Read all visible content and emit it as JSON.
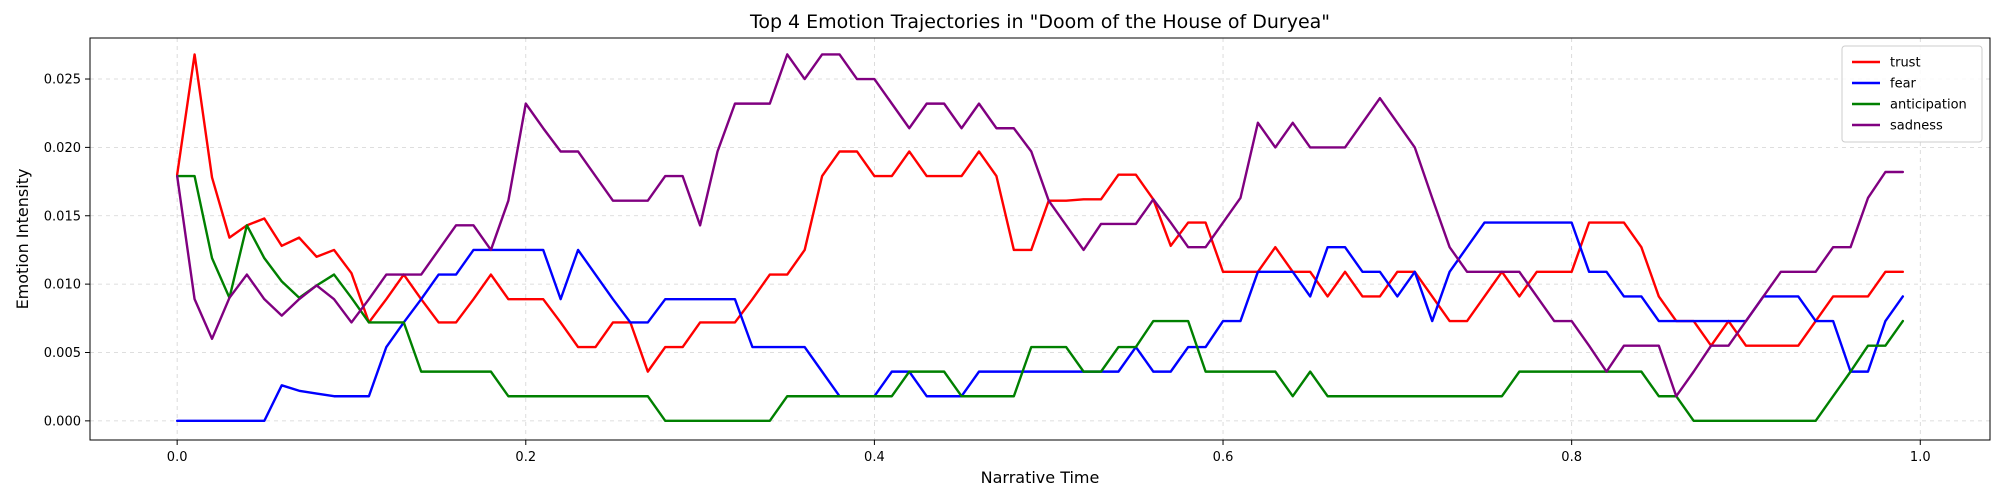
{
  "chart_data": {
    "type": "line",
    "title": "Top 4 Emotion Trajectories in \"Doom of the House of Duryea\"",
    "xlabel": "Narrative Time",
    "ylabel": "Emotion Intensity",
    "xlim": [
      -0.05,
      1.04
    ],
    "ylim": [
      -0.0014,
      0.028
    ],
    "xticks": [
      0.0,
      0.2,
      0.4,
      0.6,
      0.8,
      1.0
    ],
    "xtick_labels": [
      "0.0",
      "0.2",
      "0.4",
      "0.6",
      "0.8",
      "1.0"
    ],
    "yticks": [
      0.0,
      0.005,
      0.01,
      0.015,
      0.02,
      0.025
    ],
    "ytick_labels": [
      "0.000",
      "0.005",
      "0.010",
      "0.015",
      "0.020",
      "0.025"
    ],
    "grid": true,
    "legend_position": "top-right",
    "x": [
      0.0,
      0.01,
      0.02,
      0.03,
      0.04,
      0.05,
      0.06,
      0.07,
      0.08,
      0.09,
      0.1,
      0.11,
      0.12,
      0.13,
      0.14,
      0.15,
      0.16,
      0.17,
      0.18,
      0.19,
      0.2,
      0.21,
      0.22,
      0.23,
      0.24,
      0.25,
      0.26,
      0.27,
      0.28,
      0.29,
      0.3,
      0.31,
      0.32,
      0.33,
      0.34,
      0.35,
      0.36,
      0.37,
      0.38,
      0.39,
      0.4,
      0.41,
      0.42,
      0.43,
      0.44,
      0.45,
      0.46,
      0.47,
      0.48,
      0.49,
      0.5,
      0.51,
      0.52,
      0.53,
      0.54,
      0.55,
      0.56,
      0.57,
      0.58,
      0.59,
      0.6,
      0.61,
      0.62,
      0.63,
      0.64,
      0.65,
      0.66,
      0.67,
      0.68,
      0.69,
      0.7,
      0.71,
      0.72,
      0.73,
      0.74,
      0.75,
      0.76,
      0.77,
      0.78,
      0.79,
      0.8,
      0.81,
      0.82,
      0.83,
      0.84,
      0.85,
      0.86,
      0.87,
      0.88,
      0.89,
      0.9,
      0.91,
      0.92,
      0.93,
      0.94,
      0.95,
      0.96,
      0.97,
      0.98,
      0.99
    ],
    "series": [
      {
        "name": "trust",
        "color": "#ff0000",
        "values": [
          0.018,
          0.0268,
          0.0178,
          0.0134,
          0.0143,
          0.0148,
          0.0128,
          0.0134,
          0.012,
          0.0125,
          0.0108,
          0.0072,
          0.0089,
          0.0107,
          0.0089,
          0.0072,
          0.0072,
          0.0089,
          0.0107,
          0.0089,
          0.0089,
          0.0089,
          0.0072,
          0.0054,
          0.0054,
          0.0072,
          0.0072,
          0.0036,
          0.0054,
          0.0054,
          0.0072,
          0.0072,
          0.0072,
          0.0089,
          0.0107,
          0.0107,
          0.0125,
          0.0179,
          0.0197,
          0.0197,
          0.0179,
          0.0179,
          0.0197,
          0.0179,
          0.0179,
          0.0179,
          0.0197,
          0.0179,
          0.0125,
          0.0125,
          0.0161,
          0.0161,
          0.0162,
          0.0162,
          0.018,
          0.018,
          0.0162,
          0.0128,
          0.0145,
          0.0145,
          0.0109,
          0.0109,
          0.0109,
          0.0127,
          0.0109,
          0.0109,
          0.0091,
          0.0109,
          0.0091,
          0.0091,
          0.0109,
          0.0109,
          0.0091,
          0.0073,
          0.0073,
          0.0091,
          0.0109,
          0.0091,
          0.0109,
          0.0109,
          0.0109,
          0.0145,
          0.0145,
          0.0145,
          0.0127,
          0.0091,
          0.0073,
          0.0073,
          0.0055,
          0.0073,
          0.0055,
          0.0055,
          0.0055,
          0.0055,
          0.0073,
          0.0091,
          0.0091,
          0.0091,
          0.0109,
          0.0109
        ]
      },
      {
        "name": "fear",
        "color": "#0000ff",
        "values": [
          0.0,
          0.0,
          0.0,
          0.0,
          0.0,
          0.0,
          0.0026,
          0.0022,
          0.002,
          0.0018,
          0.0018,
          0.0018,
          0.0054,
          0.0072,
          0.0089,
          0.0107,
          0.0107,
          0.0125,
          0.0125,
          0.0125,
          0.0125,
          0.0125,
          0.0089,
          0.0125,
          0.0107,
          0.0089,
          0.0072,
          0.0072,
          0.0089,
          0.0089,
          0.0089,
          0.0089,
          0.0089,
          0.0054,
          0.0054,
          0.0054,
          0.0054,
          0.0036,
          0.0018,
          0.0018,
          0.0018,
          0.0036,
          0.0036,
          0.0018,
          0.0018,
          0.0018,
          0.0036,
          0.0036,
          0.0036,
          0.0036,
          0.0036,
          0.0036,
          0.0036,
          0.0036,
          0.0036,
          0.0054,
          0.0036,
          0.0036,
          0.0054,
          0.0054,
          0.0073,
          0.0073,
          0.0109,
          0.0109,
          0.0109,
          0.0091,
          0.0127,
          0.0127,
          0.0109,
          0.0109,
          0.0091,
          0.0109,
          0.0073,
          0.0109,
          0.0127,
          0.0145,
          0.0145,
          0.0145,
          0.0145,
          0.0145,
          0.0145,
          0.0109,
          0.0109,
          0.0091,
          0.0091,
          0.0073,
          0.0073,
          0.0073,
          0.0073,
          0.0073,
          0.0073,
          0.0091,
          0.0091,
          0.0091,
          0.0073,
          0.0073,
          0.0036,
          0.0036,
          0.0073,
          0.0091
        ]
      },
      {
        "name": "anticipation",
        "color": "#008000",
        "values": [
          0.0179,
          0.0179,
          0.0119,
          0.009,
          0.0143,
          0.0119,
          0.0102,
          0.009,
          0.0099,
          0.0107,
          0.009,
          0.0072,
          0.0072,
          0.0072,
          0.0036,
          0.0036,
          0.0036,
          0.0036,
          0.0036,
          0.0018,
          0.0018,
          0.0018,
          0.0018,
          0.0018,
          0.0018,
          0.0018,
          0.0018,
          0.0018,
          0.0,
          0.0,
          0.0,
          0.0,
          0.0,
          0.0,
          0.0,
          0.0018,
          0.0018,
          0.0018,
          0.0018,
          0.0018,
          0.0018,
          0.0018,
          0.0036,
          0.0036,
          0.0036,
          0.0018,
          0.0018,
          0.0018,
          0.0018,
          0.0054,
          0.0054,
          0.0054,
          0.0036,
          0.0036,
          0.0054,
          0.0054,
          0.0073,
          0.0073,
          0.0073,
          0.0036,
          0.0036,
          0.0036,
          0.0036,
          0.0036,
          0.0018,
          0.0036,
          0.0018,
          0.0018,
          0.0018,
          0.0018,
          0.0018,
          0.0018,
          0.0018,
          0.0018,
          0.0018,
          0.0018,
          0.0018,
          0.0036,
          0.0036,
          0.0036,
          0.0036,
          0.0036,
          0.0036,
          0.0036,
          0.0036,
          0.0018,
          0.0018,
          0.0,
          0.0,
          0.0,
          0.0,
          0.0,
          0.0,
          0.0,
          0.0,
          0.0018,
          0.0036,
          0.0055,
          0.0055,
          0.0073
        ]
      },
      {
        "name": "sadness",
        "color": "#800080",
        "values": [
          0.0179,
          0.0089,
          0.006,
          0.009,
          0.0107,
          0.0089,
          0.0077,
          0.0089,
          0.0099,
          0.0089,
          0.0072,
          0.0089,
          0.0107,
          0.0107,
          0.0107,
          0.0125,
          0.0143,
          0.0143,
          0.0125,
          0.0161,
          0.0232,
          0.0214,
          0.0197,
          0.0197,
          0.0179,
          0.0161,
          0.0161,
          0.0161,
          0.0179,
          0.0179,
          0.0143,
          0.0197,
          0.0232,
          0.0232,
          0.0232,
          0.0268,
          0.025,
          0.0268,
          0.0268,
          0.025,
          0.025,
          0.0232,
          0.0214,
          0.0232,
          0.0232,
          0.0214,
          0.0232,
          0.0214,
          0.0214,
          0.0197,
          0.0161,
          0.0143,
          0.0125,
          0.0144,
          0.0144,
          0.0144,
          0.0162,
          0.0145,
          0.0127,
          0.0127,
          0.0145,
          0.0163,
          0.0218,
          0.02,
          0.0218,
          0.02,
          0.02,
          0.02,
          0.0218,
          0.0236,
          0.0218,
          0.02,
          0.0163,
          0.0127,
          0.0109,
          0.0109,
          0.0109,
          0.0109,
          0.0091,
          0.0073,
          0.0073,
          0.0055,
          0.0036,
          0.0055,
          0.0055,
          0.0055,
          0.0018,
          0.0036,
          0.0055,
          0.0055,
          0.0073,
          0.0091,
          0.0109,
          0.0109,
          0.0109,
          0.0127,
          0.0127,
          0.0163,
          0.0182,
          0.0182
        ]
      }
    ]
  }
}
